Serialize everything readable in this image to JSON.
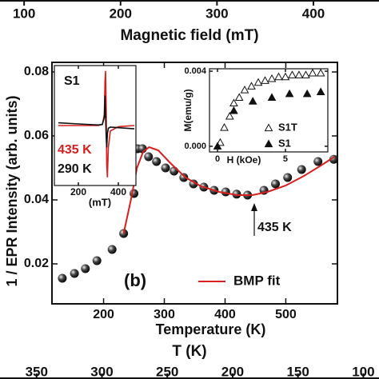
{
  "chart_data": [
    {
      "type": "axis",
      "xlabel": "Magnetic field (mT)",
      "xlim": [
        75,
        468
      ],
      "xticks": [
        100,
        200,
        300,
        400
      ]
    },
    {
      "type": "scatter",
      "xlabel": "Temperature (K)",
      "ylabel": "1 / EPR  Intensity (arb. units)",
      "xlim": [
        115,
        585
      ],
      "ylim": [
        0.0075,
        0.083
      ],
      "xticks": [
        200,
        300,
        400,
        500
      ],
      "yticks": [
        0.02,
        0.04,
        0.06,
        0.08
      ],
      "annotations": [
        "(b)",
        "435 K"
      ],
      "series": [
        {
          "color": "#111111",
          "marker": "sphere",
          "x": [
            132,
            152,
            170,
            189,
            214,
            233,
            250,
            256,
            264,
            274,
            287,
            302,
            316,
            332,
            348,
            365,
            382,
            401,
            419,
            437,
            464,
            483,
            503,
            526,
            553,
            579
          ],
          "values": [
            0.0155,
            0.017,
            0.0185,
            0.021,
            0.0245,
            0.0295,
            0.042,
            0.056,
            0.056,
            0.0535,
            0.052,
            0.05,
            0.049,
            0.047,
            0.045,
            0.044,
            0.043,
            0.0425,
            0.0418,
            0.0415,
            0.043,
            0.045,
            0.047,
            0.0495,
            0.052,
            0.0527
          ]
        },
        {
          "name": "BMP fit",
          "color": "#d62020",
          "marker": "line",
          "x": [
            233,
            245,
            255,
            265,
            275,
            290,
            310,
            335,
            360,
            390,
            420,
            445,
            470,
            500,
            530,
            560,
            580
          ],
          "values": [
            0.0295,
            0.04,
            0.05,
            0.055,
            0.0565,
            0.0555,
            0.0515,
            0.047,
            0.0443,
            0.0425,
            0.0415,
            0.0415,
            0.0425,
            0.0445,
            0.0475,
            0.051,
            0.0535
          ]
        }
      ]
    },
    {
      "type": "line",
      "title": "S1",
      "xlabel": "(mT)",
      "xlim": [
        80,
        488
      ],
      "ylim": [
        -1.1,
        1.1
      ],
      "xticks": [
        200,
        400
      ],
      "series": [
        {
          "name": "435 K",
          "color": "#d62020",
          "x": [
            100,
            200,
            300,
            320,
            330,
            333,
            336,
            339,
            342,
            345,
            350,
            360,
            400,
            480
          ],
          "values": [
            0,
            0,
            0,
            0.02,
            0.2,
            0.8,
            1.0,
            0.3,
            -0.7,
            -0.95,
            -0.4,
            -0.1,
            -0.02,
            0
          ]
        },
        {
          "name": "290 K",
          "color": "#111111",
          "x": [
            100,
            200,
            300,
            320,
            330,
            333,
            336,
            339,
            342,
            345,
            350,
            360,
            400,
            480
          ],
          "values": [
            0.05,
            0.03,
            0.01,
            0.02,
            0.15,
            0.55,
            0.2,
            -0.2,
            -0.4,
            -0.15,
            -0.05,
            -0.03,
            -0.04,
            -0.06
          ]
        }
      ]
    },
    {
      "type": "scatter",
      "xlabel": "H (kOe)",
      "ylabel": "M(emu/g)",
      "xlim": [
        -0.59,
        8.12
      ],
      "ylim": [
        -0.0003,
        0.00413
      ],
      "xticks": [
        0,
        5
      ],
      "yticks": [
        {
          "value": 0,
          "label": "0.000"
        },
        {
          "value": 0.004,
          "label": "0.004"
        }
      ],
      "series": [
        {
          "name": "S1T",
          "color": "#111111",
          "marker": "open-triangle",
          "x": [
            0.2,
            0.5,
            0.9,
            1.2,
            1.6,
            2.0,
            2.5,
            3.0,
            3.5,
            4.0,
            4.5,
            5.0,
            5.5,
            6.0,
            6.5,
            7.0,
            7.6
          ],
          "values": [
            0.0002,
            0.001,
            0.0016,
            0.0023,
            0.0026,
            0.003,
            0.0032,
            0.0034,
            0.0035,
            0.0036,
            0.0037,
            0.0037,
            0.0038,
            0.0038,
            0.0038,
            0.0039,
            0.0039
          ]
        },
        {
          "name": "S1",
          "color": "#111111",
          "marker": "triangle",
          "x": [
            0,
            1.2,
            2.6,
            4.0,
            5.3,
            6.6,
            7.6
          ],
          "values": [
            0,
            0.0019,
            0.0024,
            0.0026,
            0.0028,
            0.0028,
            0.0029
          ]
        }
      ]
    },
    {
      "type": "axis",
      "xlabel": "T (K)",
      "xlim": [
        378,
        88
      ],
      "xticks": [
        350,
        300,
        250,
        200,
        150,
        100
      ]
    }
  ]
}
